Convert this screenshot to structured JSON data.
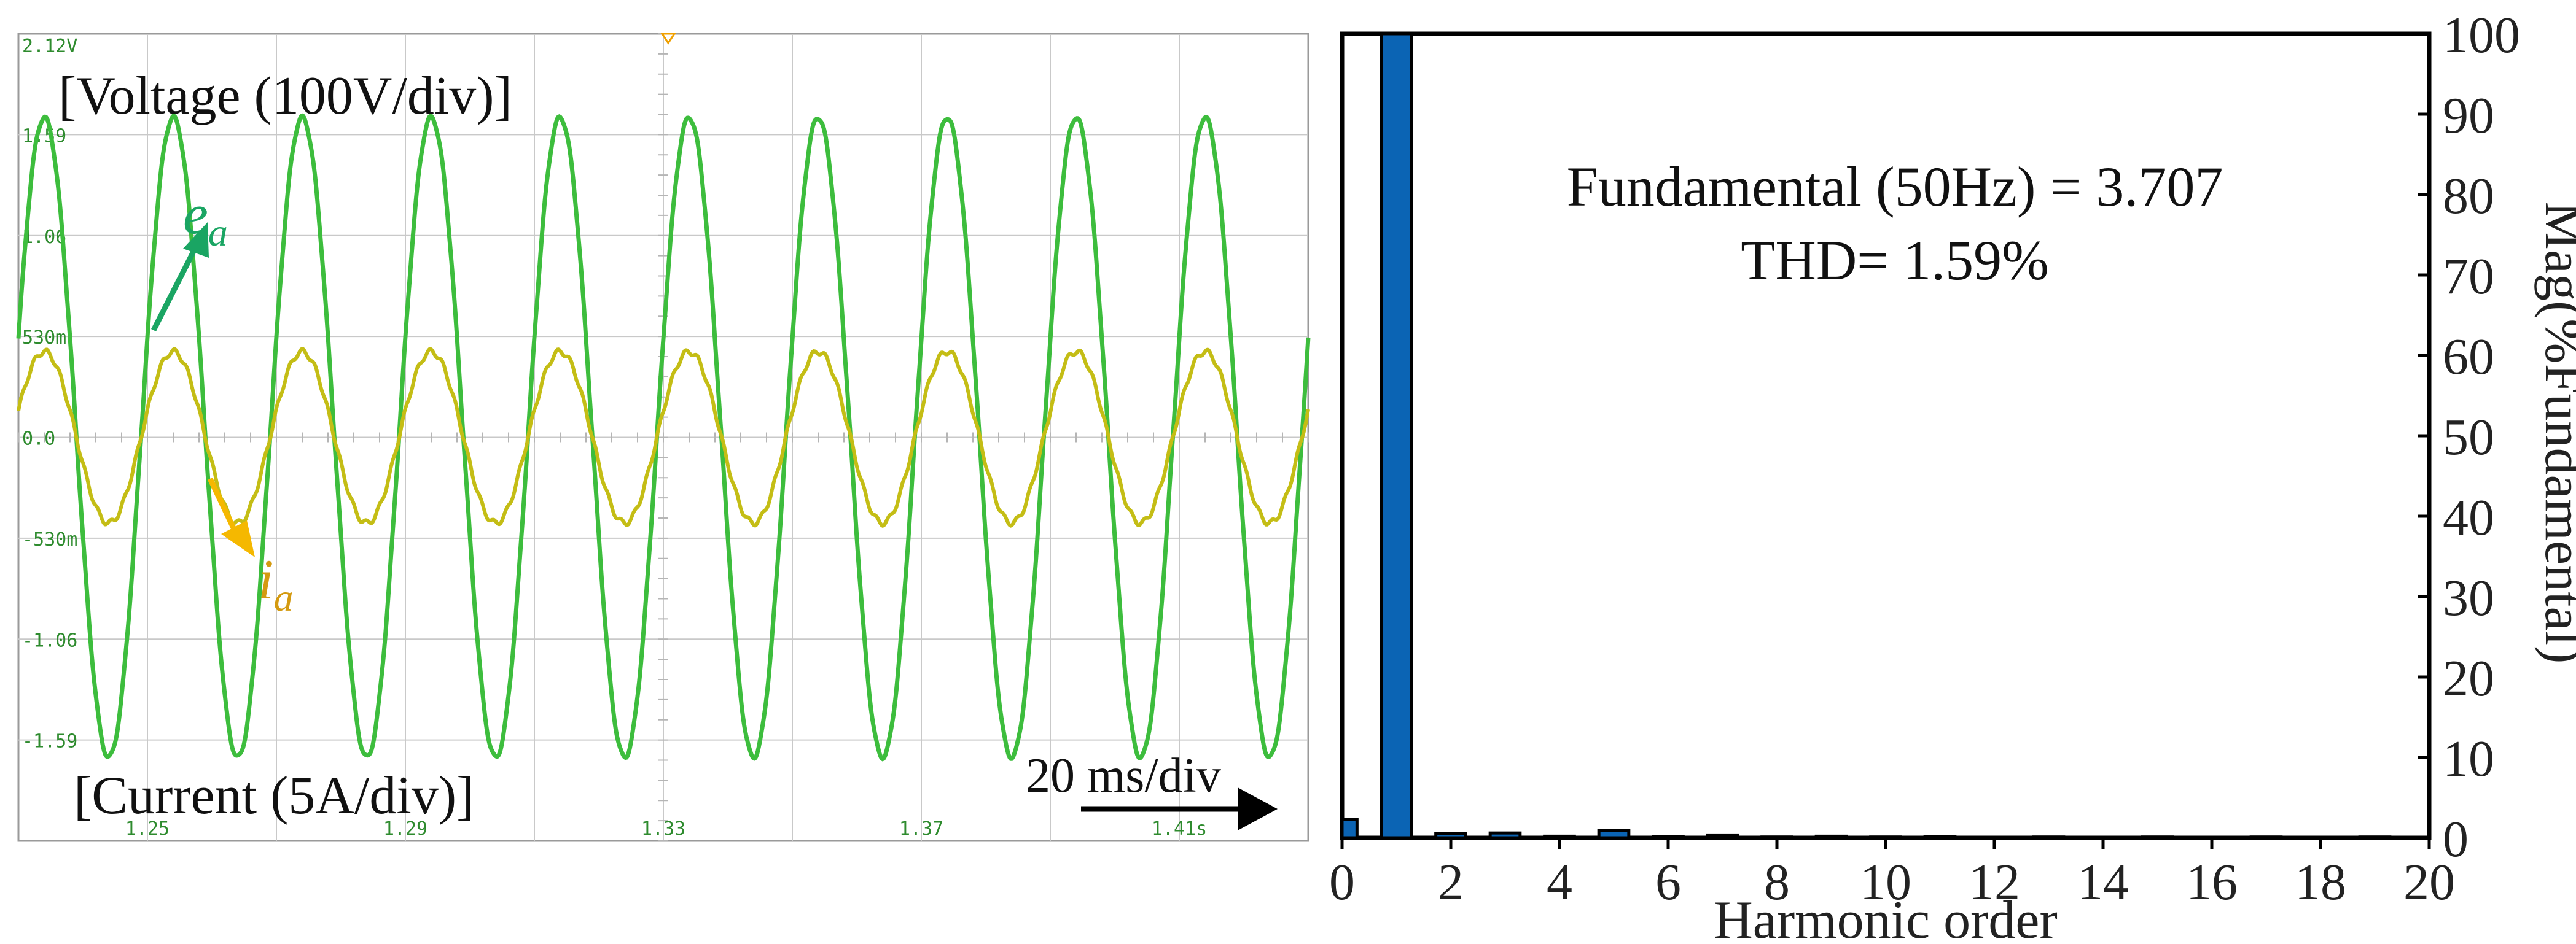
{
  "colors": {
    "voltage": "#3dbd3d",
    "current": "#c4bd15",
    "label_voltage": "#1aa563",
    "label_current": "#d49a10",
    "arrow_current": "#f5b800",
    "bar": "#0b64b4",
    "grid": "#c9c9c9",
    "axis_text": "#2e8b2e",
    "trigger": "#f0a000"
  },
  "scope": {
    "voltage_label": "[Voltage (100V/div)]",
    "current_label": "[Current (5A/div)]",
    "timebase_label": "20 ms/div",
    "ea_label": "e",
    "ea_sub": "a",
    "ia_label": "i",
    "ia_sub": "a",
    "y_tick_labels": [
      "2.12V",
      "1.59",
      "1.06",
      "530m",
      "0.0",
      "-530m",
      "-1.06",
      "-1.59"
    ],
    "y_tick_values": [
      2.12,
      1.59,
      1.06,
      0.53,
      0.0,
      -0.53,
      -1.06,
      -1.59
    ],
    "x_tick_labels": [
      "1.25",
      "1.29",
      "1.33",
      "1.37",
      "1.41s"
    ],
    "x_tick_values": [
      1.25,
      1.29,
      1.33,
      1.37,
      1.41
    ]
  },
  "chart_data": [
    {
      "type": "line",
      "x_range": [
        1.23,
        1.43
      ],
      "y_range": [
        -2.12,
        2.12
      ],
      "grid": true,
      "series": [
        {
          "name": "e_a",
          "kind": "sine",
          "frequency": 50,
          "amplitude": 1.68,
          "phase_deg": 18
        },
        {
          "name": "i_a",
          "kind": "sine",
          "frequency": 50,
          "amplitude": 0.45,
          "phase_deg": 18
        }
      ]
    },
    {
      "type": "bar",
      "title": "Fundamental (50Hz) = 3.707",
      "subtitle": "THD= 1.59%",
      "xlabel": "Harmonic order",
      "ylabel": "Mag(%Fundamental)",
      "xlim": [
        0,
        20
      ],
      "ylim": [
        0,
        100
      ],
      "x_ticks": [
        0,
        2,
        4,
        6,
        8,
        10,
        12,
        14,
        16,
        18,
        20
      ],
      "y_ticks": [
        0,
        10,
        20,
        30,
        40,
        50,
        60,
        70,
        80,
        90,
        100
      ],
      "categories": [
        0,
        1,
        2,
        3,
        4,
        5,
        6,
        7,
        8,
        9,
        10,
        11,
        12,
        13,
        14,
        15,
        16,
        17,
        18,
        19
      ],
      "values": [
        2.3,
        100,
        0.5,
        0.6,
        0.2,
        0.9,
        0.15,
        0.35,
        0.1,
        0.2,
        0.1,
        0.15,
        0.05,
        0.1,
        0.05,
        0.1,
        0.05,
        0.1,
        0.05,
        0.1
      ]
    }
  ]
}
